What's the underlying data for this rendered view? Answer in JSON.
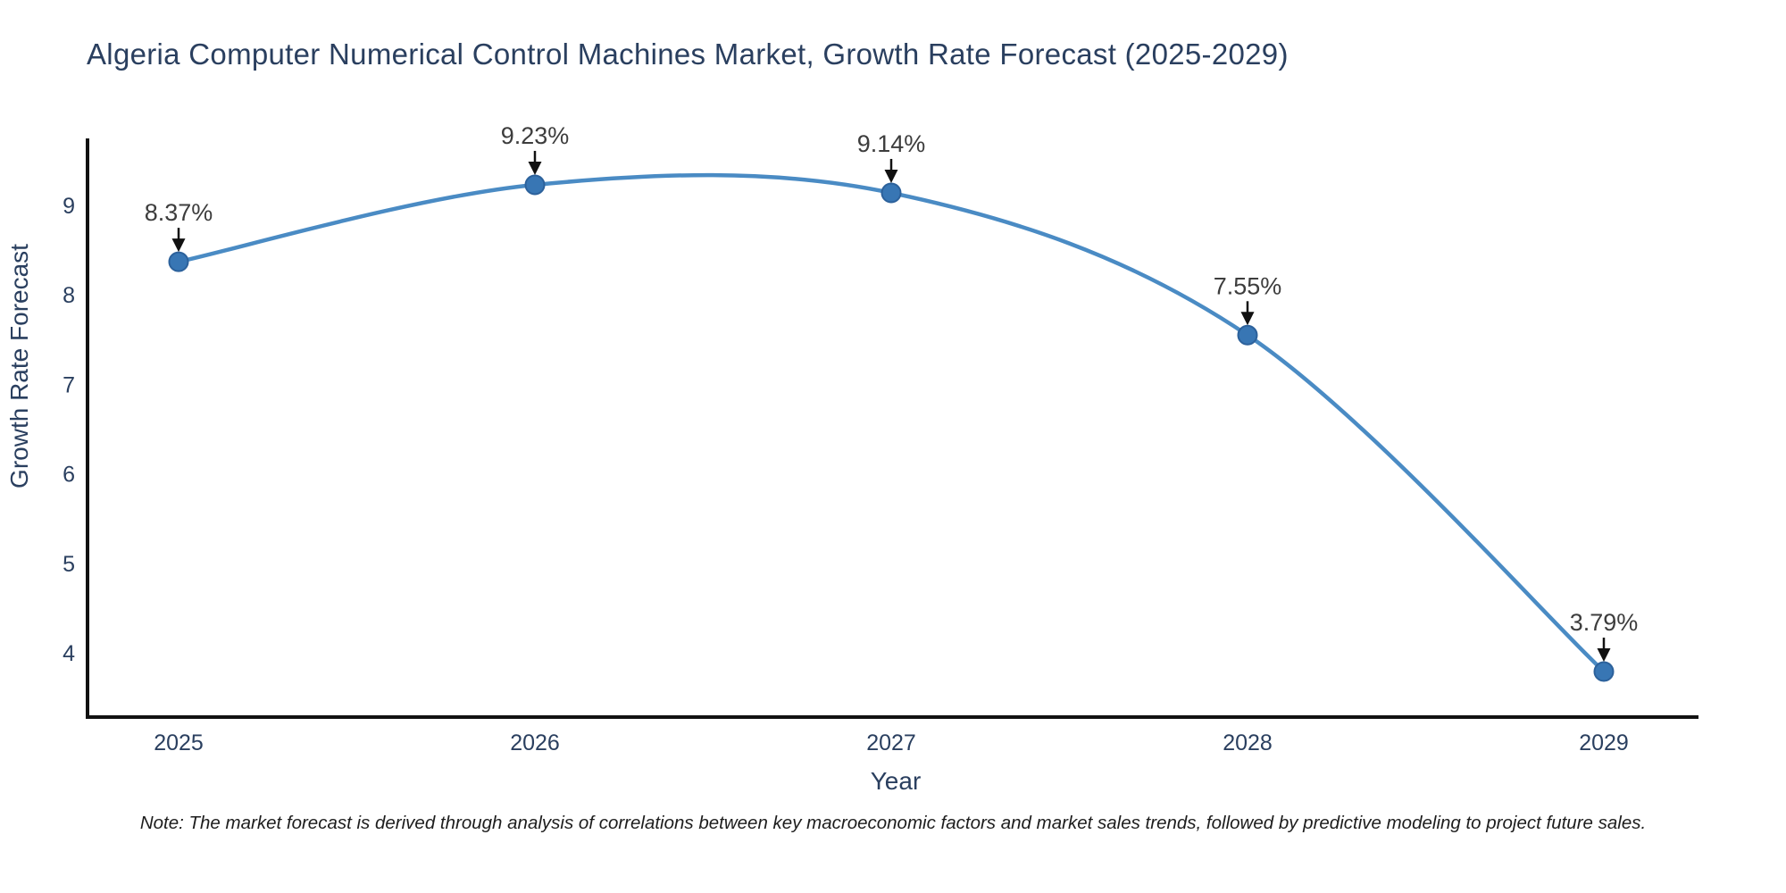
{
  "chart": {
    "title": "Algeria Computer Numerical Control Machines Market, Growth Rate Forecast (2025-2029)",
    "note": "Note: The market forecast is derived through analysis of correlations between key macroeconomic factors and market sales trends, followed by predictive modeling to project future sales.",
    "xlabel": "Year",
    "ylabel": "Growth Rate Forecast"
  },
  "chart_data": {
    "type": "line",
    "title": "Algeria Computer Numerical Control Machines Market, Growth Rate Forecast (2025-2029)",
    "xlabel": "Year",
    "ylabel": "Growth Rate Forecast",
    "categories": [
      "2025",
      "2026",
      "2027",
      "2028",
      "2029"
    ],
    "series": [
      {
        "name": "Growth Rate Forecast",
        "values": [
          8.37,
          9.23,
          9.14,
          7.55,
          3.79
        ],
        "point_labels": [
          "8.37%",
          "9.23%",
          "9.14%",
          "7.55%",
          "3.79%"
        ]
      }
    ],
    "yticks": [
      4,
      5,
      6,
      7,
      8,
      9
    ],
    "ylim": [
      3.28,
      9.75
    ],
    "grid": false,
    "legend_position": "none",
    "line_smoothing": true,
    "annotation_arrows": true,
    "colors": {
      "line": "#4a8bc4",
      "marker": "#3876b4",
      "marker_edge": "#2c619b",
      "axis": "#111111",
      "tick_text": "#2a3f5f",
      "title_text": "#2a3f5f",
      "annotation_text": "#3d3d3d",
      "arrow": "#111111",
      "background": "#ffffff"
    }
  }
}
